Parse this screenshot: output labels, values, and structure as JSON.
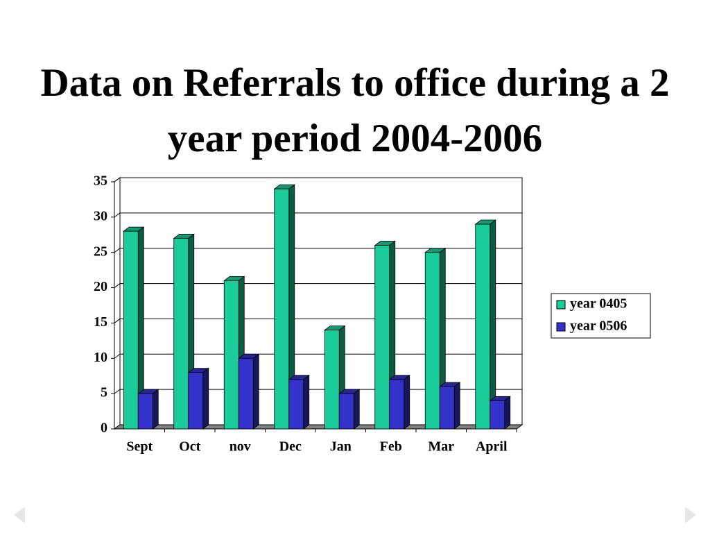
{
  "chart_data": {
    "type": "bar3d",
    "title": "Data on Referrals to office during a 2 year period 2004-2006",
    "categories": [
      "Sept",
      "Oct",
      "nov",
      "Dec",
      "Jan",
      "Feb",
      "Mar",
      "April"
    ],
    "series": [
      {
        "name": "year 0405",
        "color": "#19cc99",
        "values": [
          28,
          27,
          21,
          34,
          14,
          26,
          25,
          29
        ]
      },
      {
        "name": "year 0506",
        "color": "#3333cc",
        "values": [
          5,
          8,
          10,
          7,
          5,
          7,
          6,
          4
        ]
      }
    ],
    "ylim": [
      0,
      35
    ],
    "yticks": [
      0,
      5,
      10,
      15,
      20,
      25,
      30,
      35
    ],
    "grid": true,
    "legend": "right"
  }
}
